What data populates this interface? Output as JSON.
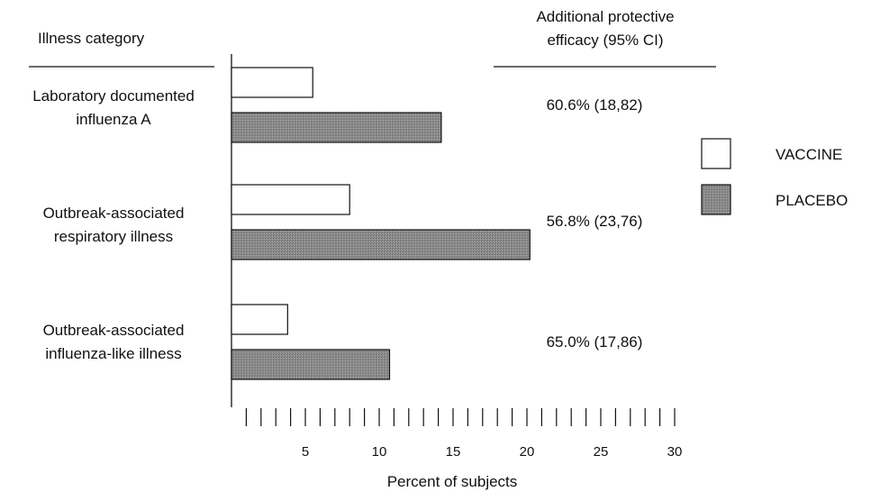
{
  "chart_data": {
    "type": "bar",
    "orientation": "horizontal",
    "column_headers": {
      "left": "Illness category",
      "right_line1": "Additional protective",
      "right_line2": "efficacy (95% CI)"
    },
    "categories": [
      {
        "lines": [
          "Laboratory documented",
          "influenza A"
        ],
        "efficacy": "60.6% (18,82)"
      },
      {
        "lines": [
          "Outbreak-associated",
          "respiratory illness"
        ],
        "efficacy": "56.8% (23,76)"
      },
      {
        "lines": [
          "Outbreak-associated",
          "influenza-like illness"
        ],
        "efficacy": "65.0% (17,86)"
      }
    ],
    "series": [
      {
        "name": "VACCINE",
        "values": [
          5.5,
          8.0,
          3.8
        ],
        "color": "#ffffff"
      },
      {
        "name": "PLACEBO",
        "values": [
          14.2,
          20.2,
          10.7
        ],
        "color": "#8a8a8a"
      }
    ],
    "xlabel": "Percent of subjects",
    "xlim": [
      0,
      30
    ],
    "x_tick_labels": [
      "5",
      "10",
      "15",
      "20",
      "25",
      "30"
    ],
    "legend_placement": "right",
    "grid": false
  }
}
